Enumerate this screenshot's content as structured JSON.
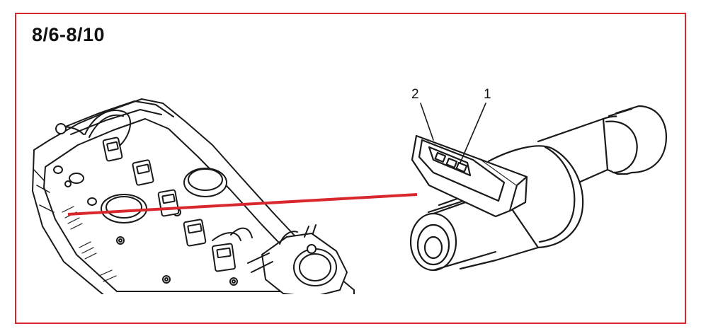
{
  "figure": {
    "title": "8/6-8/10",
    "callouts": [
      {
        "id": "1",
        "label": "1"
      },
      {
        "id": "2",
        "label": "2"
      }
    ],
    "colors": {
      "frame": "#d9272e",
      "pointer_line": "#d9272e",
      "linework": "#1a1a1a"
    }
  }
}
